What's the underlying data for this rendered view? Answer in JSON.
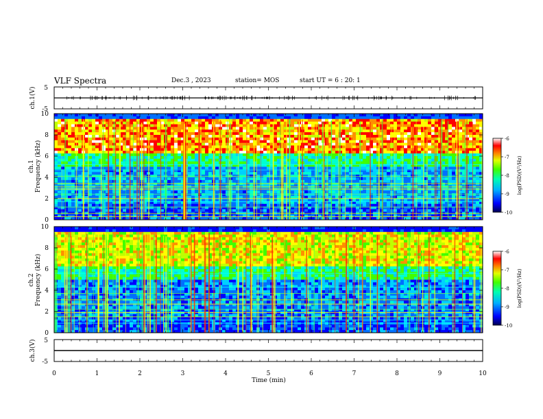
{
  "header": {
    "title": "VLF Spectra",
    "date": "Dec.3 , 2023",
    "station": "station= MOS",
    "start_ut": "start UT = 6 : 20: 1"
  },
  "chart_data": [
    {
      "type": "line",
      "panel": "ch1-waveform",
      "ylabel": "ch.1(V)",
      "ylim": [
        -5,
        5
      ],
      "yticks": [
        "5",
        "-5"
      ],
      "xlim": [
        0,
        10
      ],
      "baseline": 0
    },
    {
      "type": "heatmap",
      "panel": "ch1-spectrogram",
      "ylabel": "ch.1\nFrequency (kHz)",
      "ylim": [
        0,
        10
      ],
      "yticks": [
        "0",
        "2",
        "4",
        "6",
        "8",
        "10"
      ],
      "xlim": [
        0,
        10
      ],
      "colorbar": {
        "label": "log(PSD)(V²/Hz)",
        "range": [
          -10,
          -6
        ],
        "ticks": [
          "-6",
          "-7",
          "-8",
          "-9",
          "-10"
        ]
      },
      "colormap": [
        "#000080",
        "#0000ff",
        "#00a0ff",
        "#00ffff",
        "#00ff40",
        "#a0ff00",
        "#ffff00",
        "#ff8000",
        "#ff0000",
        "#ffffff"
      ]
    },
    {
      "type": "heatmap",
      "panel": "ch2-spectrogram",
      "ylabel": "ch.2\nFrequency (kHz)",
      "ylim": [
        0,
        10
      ],
      "yticks": [
        "0",
        "2",
        "4",
        "6",
        "8",
        "10"
      ],
      "xlim": [
        0,
        10
      ],
      "colorbar": {
        "label": "log(PSD)(V²/Hz)",
        "range": [
          -10,
          -6
        ],
        "ticks": [
          "-6",
          "-7",
          "-8",
          "-9",
          "-10"
        ]
      }
    },
    {
      "type": "line",
      "panel": "ch3-waveform",
      "ylabel": "ch.3(V)",
      "ylim": [
        -5,
        5
      ],
      "yticks": [
        "5",
        "-5"
      ],
      "xlim": [
        0,
        10
      ],
      "baseline": 0,
      "xlabel": "Time (min)",
      "xticks": [
        "0",
        "1",
        "2",
        "3",
        "4",
        "5",
        "6",
        "7",
        "8",
        "9",
        "10"
      ]
    }
  ]
}
